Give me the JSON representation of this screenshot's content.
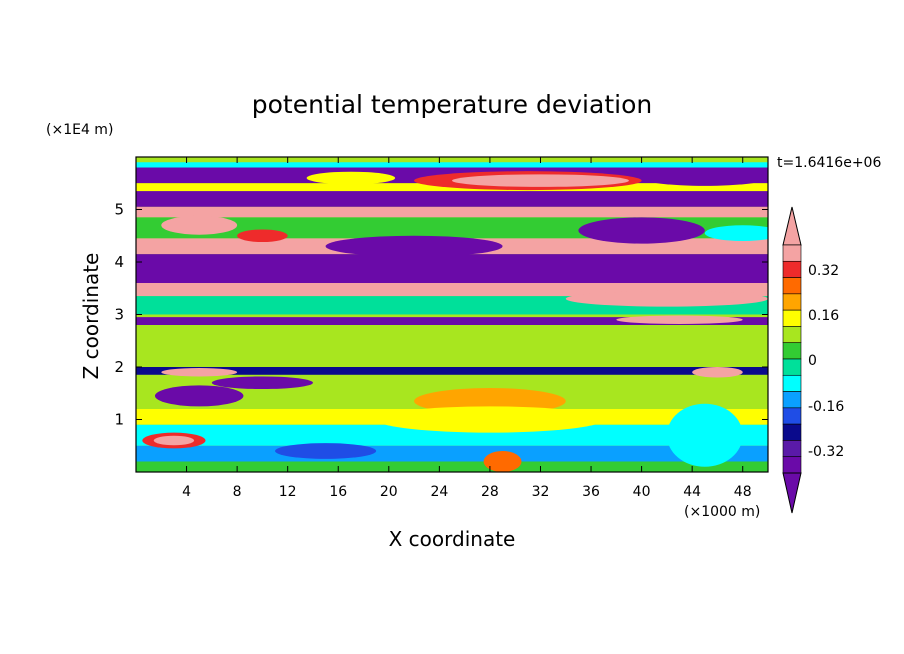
{
  "chart_data": {
    "type": "heatmap",
    "title": "potential temperature deviation",
    "xlabel": "X coordinate",
    "ylabel": "Z coordinate",
    "x_units": "(×1000 m)",
    "y_units": "(×1E4 m)",
    "time_label": "t=1.6416e+06",
    "xlim": [
      0,
      50
    ],
    "ylim": [
      0,
      6
    ],
    "x_ticks": [
      4,
      8,
      12,
      16,
      20,
      24,
      28,
      32,
      36,
      40,
      44,
      48
    ],
    "y_ticks": [
      1,
      2,
      3,
      4,
      5
    ],
    "colorbar": {
      "labels": [
        "0.32",
        "0.16",
        "0",
        "-0.16",
        "-0.32"
      ],
      "colors": [
        "#f4a3a3",
        "#ee2b2b",
        "#ff6a00",
        "#ffa500",
        "#ffff00",
        "#a8e61f",
        "#33cc33",
        "#00e09a",
        "#00ffff",
        "#0aa0ff",
        "#1f4de6",
        "#0a0a8c",
        "#5a1aa8",
        "#6a0aa8"
      ],
      "arrow_top": "#f4a3a3",
      "arrow_bottom": "#6a0aa8",
      "extends": "both"
    },
    "bands": [
      {
        "z0": 5.8,
        "z1": 5.9,
        "color": "#00ffff"
      },
      {
        "z0": 5.5,
        "z1": 5.8,
        "color": "#6a0aa8"
      },
      {
        "z0": 5.35,
        "z1": 5.5,
        "color": "#ffff00"
      },
      {
        "z0": 5.05,
        "z1": 5.35,
        "color": "#6a0aa8"
      },
      {
        "z0": 4.85,
        "z1": 5.05,
        "color": "#f4a3a3"
      },
      {
        "z0": 4.45,
        "z1": 4.85,
        "color": "#33cc33"
      },
      {
        "z0": 4.15,
        "z1": 4.45,
        "color": "#f4a3a3"
      },
      {
        "z0": 3.6,
        "z1": 4.15,
        "color": "#6a0aa8"
      },
      {
        "z0": 3.35,
        "z1": 3.6,
        "color": "#f4a3a3"
      },
      {
        "z0": 3.0,
        "z1": 3.35,
        "color": "#00e09a"
      },
      {
        "z0": 2.8,
        "z1": 2.95,
        "color": "#6a0aa8"
      },
      {
        "z0": 2.0,
        "z1": 2.8,
        "color": "#a8e61f"
      },
      {
        "z0": 1.85,
        "z1": 2.0,
        "color": "#0a0a8c"
      },
      {
        "z0": 1.2,
        "z1": 1.85,
        "color": "#a8e61f"
      },
      {
        "z0": 0.9,
        "z1": 1.2,
        "color": "#ffff00"
      },
      {
        "z0": 0.5,
        "z1": 0.9,
        "color": "#00ffff"
      },
      {
        "z0": 0.2,
        "z1": 0.5,
        "color": "#0aa0ff"
      },
      {
        "z0": 0.0,
        "z1": 0.2,
        "color": "#33cc33"
      }
    ],
    "blobs": [
      {
        "x": 17,
        "z": 5.6,
        "rx": 3.5,
        "rz": 0.12,
        "color": "#ffff00"
      },
      {
        "x": 31,
        "z": 5.55,
        "rx": 9,
        "rz": 0.18,
        "color": "#ee2b2b"
      },
      {
        "x": 32,
        "z": 5.55,
        "rx": 7,
        "rz": 0.12,
        "color": "#f4a3a3"
      },
      {
        "x": 45,
        "z": 5.6,
        "rx": 5,
        "rz": 0.15,
        "color": "#6a0aa8"
      },
      {
        "x": 5,
        "z": 4.7,
        "rx": 3,
        "rz": 0.18,
        "color": "#f4a3a3"
      },
      {
        "x": 10,
        "z": 4.5,
        "rx": 2,
        "rz": 0.12,
        "color": "#ee2b2b"
      },
      {
        "x": 40,
        "z": 4.6,
        "rx": 5,
        "rz": 0.25,
        "color": "#6a0aa8"
      },
      {
        "x": 48,
        "z": 4.55,
        "rx": 3,
        "rz": 0.15,
        "color": "#00ffff"
      },
      {
        "x": 22,
        "z": 4.3,
        "rx": 7,
        "rz": 0.2,
        "color": "#6a0aa8"
      },
      {
        "x": 42,
        "z": 3.3,
        "rx": 8,
        "rz": 0.15,
        "color": "#f4a3a3"
      },
      {
        "x": 43,
        "z": 2.9,
        "rx": 5,
        "rz": 0.08,
        "color": "#f4a3a3"
      },
      {
        "x": 5,
        "z": 1.45,
        "rx": 3.5,
        "rz": 0.2,
        "color": "#6a0aa8"
      },
      {
        "x": 10,
        "z": 1.7,
        "rx": 4,
        "rz": 0.12,
        "color": "#6a0aa8"
      },
      {
        "x": 5,
        "z": 1.9,
        "rx": 3,
        "rz": 0.08,
        "color": "#f4a3a3"
      },
      {
        "x": 28,
        "z": 1.35,
        "rx": 6,
        "rz": 0.25,
        "color": "#ffa500"
      },
      {
        "x": 28,
        "z": 1.0,
        "rx": 9,
        "rz": 0.25,
        "color": "#ffff00"
      },
      {
        "x": 3,
        "z": 0.6,
        "rx": 2.5,
        "rz": 0.15,
        "color": "#ee2b2b"
      },
      {
        "x": 3,
        "z": 0.6,
        "rx": 1.6,
        "rz": 0.09,
        "color": "#f4a3a3"
      },
      {
        "x": 15,
        "z": 0.4,
        "rx": 4,
        "rz": 0.15,
        "color": "#1f4de6"
      },
      {
        "x": 29,
        "z": 0.2,
        "rx": 1.5,
        "rz": 0.2,
        "color": "#ff6a00"
      },
      {
        "x": 45,
        "z": 0.7,
        "rx": 3,
        "rz": 0.6,
        "color": "#00ffff"
      },
      {
        "x": 46,
        "z": 1.9,
        "rx": 2,
        "rz": 0.1,
        "color": "#f4a3a3"
      }
    ]
  }
}
